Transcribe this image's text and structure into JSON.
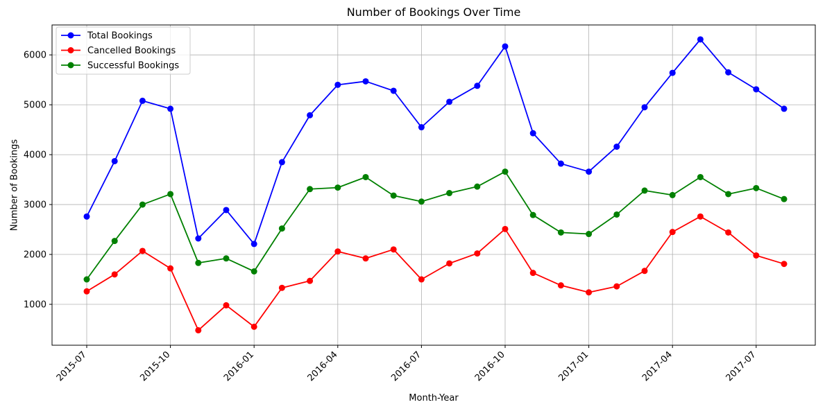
{
  "chart_data": {
    "type": "line",
    "title": "Number of Bookings Over Time",
    "xlabel": "Month-Year",
    "ylabel": "Number of Bookings",
    "x": [
      "2015-07",
      "2015-08",
      "2015-09",
      "2015-10",
      "2015-11",
      "2015-12",
      "2016-01",
      "2016-02",
      "2016-03",
      "2016-04",
      "2016-05",
      "2016-06",
      "2016-07",
      "2016-08",
      "2016-09",
      "2016-10",
      "2016-11",
      "2016-12",
      "2017-01",
      "2017-02",
      "2017-03",
      "2017-04",
      "2017-05",
      "2017-06",
      "2017-07",
      "2017-08"
    ],
    "xticks": [
      "2015-07",
      "2015-10",
      "2016-01",
      "2016-04",
      "2016-07",
      "2016-10",
      "2017-01",
      "2017-04",
      "2017-07"
    ],
    "yticks": [
      1000,
      2000,
      3000,
      4000,
      5000,
      6000
    ],
    "ylim": [
      180,
      6600
    ],
    "grid": true,
    "legend_position": "upper-left",
    "series": [
      {
        "name": "Total Bookings",
        "color": "#0000ff",
        "values": [
          2760,
          3870,
          5080,
          4920,
          2320,
          2890,
          2210,
          3850,
          4790,
          5400,
          5470,
          5280,
          4550,
          5060,
          5380,
          6170,
          4430,
          3820,
          3660,
          4160,
          4950,
          5640,
          6310,
          5650,
          5310,
          4920
        ]
      },
      {
        "name": "Cancelled Bookings",
        "color": "#ff0000",
        "values": [
          1260,
          1600,
          2070,
          1720,
          480,
          980,
          550,
          1330,
          1470,
          2060,
          1920,
          2100,
          1500,
          1820,
          2020,
          2510,
          1630,
          1380,
          1240,
          1360,
          1670,
          2450,
          2760,
          2440,
          1980,
          1810
        ]
      },
      {
        "name": "Successful Bookings",
        "color": "#008000",
        "values": [
          1500,
          2270,
          3000,
          3210,
          1830,
          1920,
          1660,
          2520,
          3310,
          3340,
          3550,
          3180,
          3060,
          3230,
          3360,
          3660,
          2790,
          2440,
          2410,
          2800,
          3280,
          3190,
          3550,
          3210,
          3330,
          3110
        ]
      }
    ]
  }
}
